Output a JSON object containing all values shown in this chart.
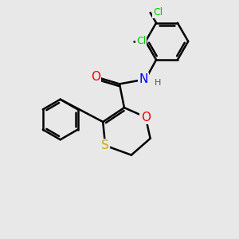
{
  "background_color": "#e8e8e8",
  "bond_color": "#000000",
  "bond_width": 1.8,
  "atom_colors": {
    "O": "#ff0000",
    "S": "#ccaa00",
    "N": "#0000ff",
    "Cl": "#00cc00",
    "C": "#000000",
    "H": "#555555"
  },
  "font_size": 10,
  "figsize": [
    3.0,
    3.0
  ],
  "dpi": 100
}
